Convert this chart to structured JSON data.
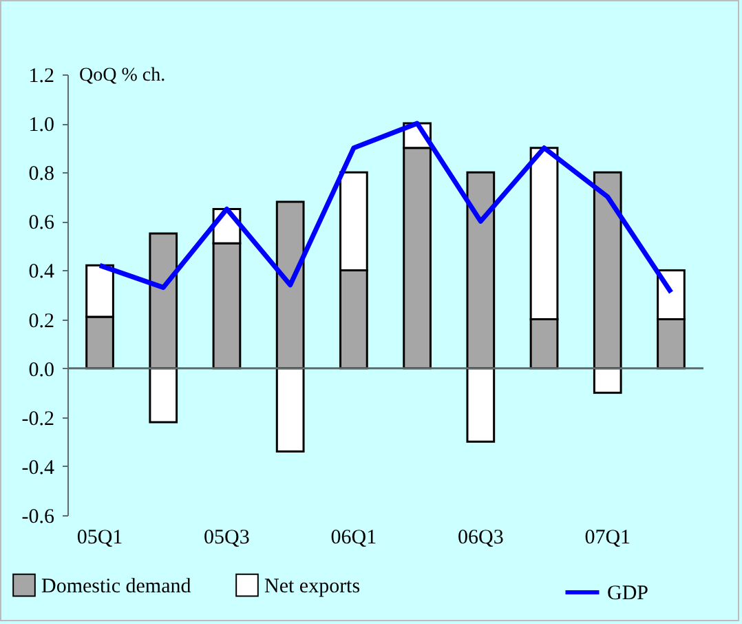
{
  "chart_data": {
    "type": "bar",
    "stacked": true,
    "ylabel": "QoQ % ch.",
    "categories": [
      "05Q1",
      null,
      "05Q3",
      null,
      "06Q1",
      null,
      "06Q3",
      null,
      "07Q1",
      null
    ],
    "series": [
      {
        "name": "Domestic demand",
        "color": "#a6a6a6",
        "values": [
          0.21,
          0.55,
          0.51,
          0.68,
          0.4,
          0.9,
          0.8,
          0.2,
          0.8,
          0.2
        ]
      },
      {
        "name": "Net exports",
        "color": "#ffffff",
        "values": [
          0.21,
          -0.22,
          0.14,
          -0.34,
          0.4,
          0.1,
          -0.3,
          0.7,
          -0.1,
          0.2
        ]
      },
      {
        "name": "GDP",
        "type": "line",
        "color": "#0000ff",
        "values": [
          0.42,
          0.33,
          0.65,
          0.34,
          0.9,
          1.0,
          0.6,
          0.9,
          0.7,
          0.31
        ]
      }
    ],
    "ylim": [
      -0.6,
      1.2
    ],
    "yticks": [
      {
        "value": -0.6,
        "label": "-0.6"
      },
      {
        "value": -0.4,
        "label": "-0.4"
      },
      {
        "value": -0.2,
        "label": "-0.2"
      },
      {
        "value": 0,
        "label": "0.0"
      },
      {
        "value": 0.2,
        "label": "0.2"
      },
      {
        "value": 0.4,
        "label": "0.4"
      },
      {
        "value": 0.6,
        "label": "0.6"
      },
      {
        "value": 0.8,
        "label": "0.8"
      },
      {
        "value": 1.0,
        "label": "1.0"
      },
      {
        "value": 1.2,
        "label": "1.2"
      }
    ],
    "ref_lines": [
      {
        "axis": "y",
        "value": 0,
        "color": "#5f6b6b"
      }
    ],
    "legend": "bottom"
  }
}
